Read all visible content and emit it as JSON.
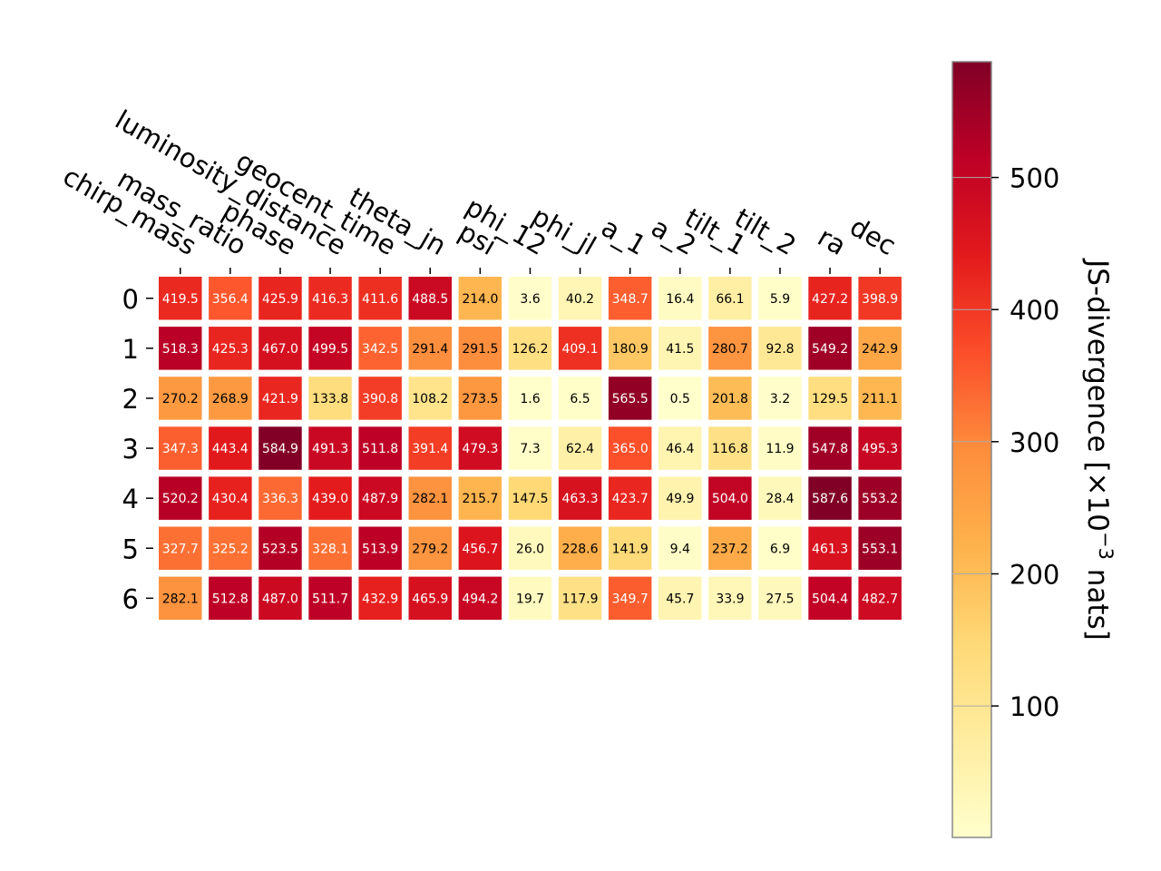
{
  "chart_data": {
    "type": "heatmap",
    "title": "",
    "xlabel": "",
    "ylabel": "",
    "columns": [
      "chirp_mass",
      "mass_ratio",
      "phase",
      "luminosity_distance",
      "geocent_time",
      "theta_jn",
      "psi",
      "phi_12",
      "phi_jl",
      "a_1",
      "a_2",
      "tilt_1",
      "tilt_2",
      "ra",
      "dec"
    ],
    "rows": [
      "0",
      "1",
      "2",
      "3",
      "4",
      "5",
      "6"
    ],
    "values": [
      [
        419.5,
        356.4,
        425.9,
        416.3,
        411.6,
        488.5,
        214.0,
        3.6,
        40.2,
        348.7,
        16.4,
        66.1,
        5.9,
        427.2,
        398.9
      ],
      [
        518.3,
        425.3,
        467.0,
        499.5,
        342.5,
        291.4,
        291.5,
        126.2,
        409.1,
        180.9,
        41.5,
        280.7,
        92.8,
        549.2,
        242.9
      ],
      [
        270.2,
        268.9,
        421.9,
        133.8,
        390.8,
        108.2,
        273.5,
        1.6,
        6.5,
        565.5,
        0.5,
        201.8,
        3.2,
        129.5,
        211.1
      ],
      [
        347.3,
        443.4,
        584.9,
        491.3,
        511.8,
        391.4,
        479.3,
        7.3,
        62.4,
        365.0,
        46.4,
        116.8,
        11.9,
        547.8,
        495.3
      ],
      [
        520.2,
        430.4,
        336.3,
        439.0,
        487.9,
        282.1,
        215.7,
        147.5,
        463.3,
        423.7,
        49.9,
        504.0,
        28.4,
        587.6,
        553.2
      ],
      [
        327.7,
        325.2,
        523.5,
        328.1,
        513.9,
        279.2,
        456.7,
        26.0,
        228.6,
        141.9,
        9.4,
        237.2,
        6.9,
        461.3,
        553.1
      ],
      [
        282.1,
        512.8,
        487.0,
        511.7,
        432.9,
        465.9,
        494.2,
        19.7,
        117.9,
        349.7,
        45.7,
        33.9,
        27.5,
        504.4,
        482.7
      ]
    ],
    "colorbar": {
      "label": "JS-divergence [×10⁻³ nats]",
      "label_main": "JS-divergence [×10",
      "label_exp": "−3",
      "label_tail": " nats]",
      "min": 0.5,
      "max": 587.6,
      "ticks": [
        "100",
        "200",
        "300",
        "400",
        "500"
      ],
      "tick_values": [
        100,
        200,
        300,
        400,
        500
      ]
    },
    "colormap": "YlOrRd",
    "colormap_stops": [
      "#ffffcc",
      "#ffeda0",
      "#fed976",
      "#feb24c",
      "#fd8d3c",
      "#fc4e2a",
      "#e31a1c",
      "#bd0026",
      "#800026"
    ],
    "grid": false
  }
}
